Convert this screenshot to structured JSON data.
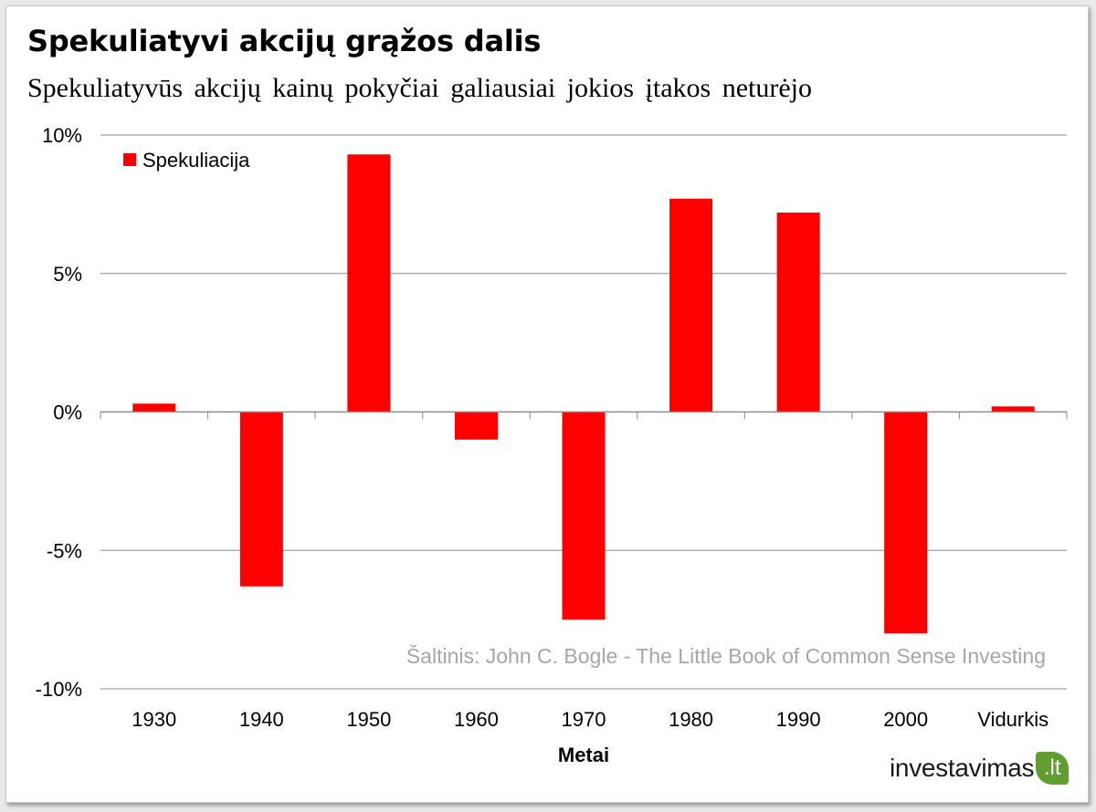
{
  "title": "Spekuliatyvi akcijų grąžos dalis",
  "subtitle": "Spekuliatyvūs akcijų kainų pokyčiai galiausiai jokios įtakos neturėjo",
  "source_note": "Šaltinis: John C. Bogle - The Little Book of Common Sense Investing",
  "brand": {
    "text": "investavimas",
    "leaf": ".lt"
  },
  "colors": {
    "bar": "#ff0000",
    "grid": "#8c8c8c",
    "axis": "#8c8c8c",
    "source_text": "#a6a6a6"
  },
  "chart_data": {
    "type": "bar",
    "categories": [
      "1930",
      "1940",
      "1950",
      "1960",
      "1970",
      "1980",
      "1990",
      "2000",
      "Vidurkis"
    ],
    "series": [
      {
        "name": "Spekuliacija",
        "values": [
          0.3,
          -6.3,
          9.3,
          -1.0,
          -7.5,
          7.7,
          7.2,
          -8.0,
          0.2
        ]
      }
    ],
    "xlabel": "Metai",
    "ylabel": "",
    "ylim": [
      -10,
      10
    ],
    "yticks": [
      10,
      5,
      0,
      -5,
      -10
    ],
    "ytick_labels": [
      "10%",
      "5%",
      "0%",
      "-5%",
      "-10%"
    ],
    "grid": true,
    "legend": "top-left"
  }
}
